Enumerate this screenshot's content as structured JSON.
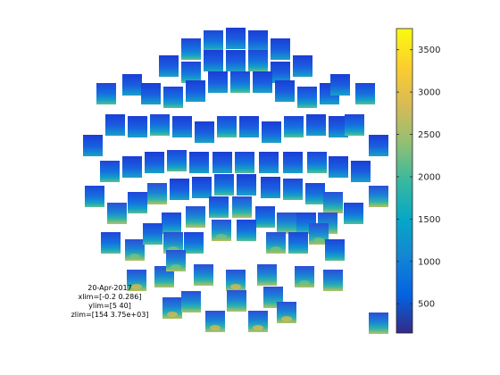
{
  "chart_data": {
    "type": "heatmap",
    "title": "",
    "layout": "topographic array of channel time-frequency tiles",
    "channel_tile_count": 98,
    "colormap": "parula",
    "colorbar": {
      "location": "right",
      "range": [
        154,
        3750
      ],
      "tick_values": [
        500,
        1000,
        1500,
        2000,
        2500,
        3000,
        3500
      ],
      "tick_labels": [
        "500",
        "1000",
        "1500",
        "2000",
        "2500",
        "3000",
        "3500"
      ]
    },
    "annotation": {
      "date": "20-Apr-2017",
      "xlim": "xlim=[-0.2 0.286]",
      "ylim": "ylim=[5 40]",
      "zlim": "zlim=[154 3.75e+03]"
    }
  }
}
